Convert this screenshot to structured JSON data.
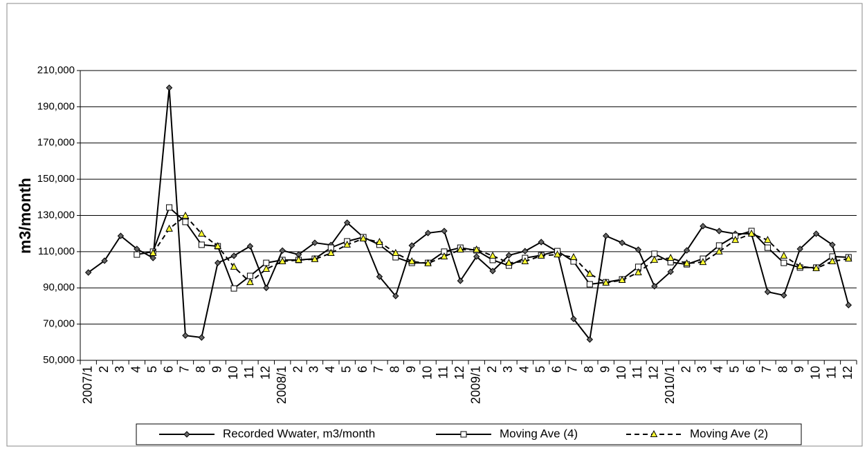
{
  "chart_data": {
    "type": "line",
    "y_label": "m3/month",
    "categories": [
      "2007/1",
      "2",
      "3",
      "4",
      "5",
      "6",
      "7",
      "8",
      "9",
      "10",
      "11",
      "12",
      "2008/1",
      "2",
      "3",
      "4",
      "5",
      "6",
      "7",
      "8",
      "9",
      "10",
      "11",
      "12",
      "2009/1",
      "2",
      "3",
      "4",
      "5",
      "6",
      "7",
      "8",
      "9",
      "10",
      "11",
      "12",
      "2010/1",
      "2",
      "3",
      "4",
      "5",
      "6",
      "7",
      "8",
      "9",
      "10",
      "11",
      "12"
    ],
    "ylim": [
      50000,
      210000
    ],
    "yticks": [
      {
        "value": 50000,
        "label": "50,000"
      },
      {
        "value": 70000,
        "label": "70,000"
      },
      {
        "value": 90000,
        "label": "90,000"
      },
      {
        "value": 110000,
        "label": "110,000"
      },
      {
        "value": 130000,
        "label": "130,000"
      },
      {
        "value": 150000,
        "label": "150,000"
      },
      {
        "value": 170000,
        "label": "170,000"
      },
      {
        "value": 190000,
        "label": "190,000"
      },
      {
        "value": 210000,
        "label": "210,000"
      }
    ],
    "grid": true,
    "legend": "bottom",
    "series": [
      {
        "name": "Recorded Wwater, m3/month",
        "color": "#000000",
        "marker": "diamond",
        "dash": "solid",
        "values": [
          98500,
          105000,
          118700,
          111500,
          106500,
          200500,
          63700,
          62600,
          103800,
          107700,
          113000,
          90000,
          110600,
          108400,
          114900,
          113700,
          126000,
          118000,
          96200,
          85500,
          113400,
          120300,
          121400,
          93900,
          107300,
          99300,
          108000,
          110300,
          115300,
          110000,
          72900,
          61500,
          118700,
          114900,
          111100,
          90900,
          98900,
          110700,
          124100,
          121400,
          119900,
          119900,
          87800,
          85900,
          111500,
          119900,
          113800,
          80500
        ]
      },
      {
        "name": "Moving Ave (4)",
        "color": "#000000",
        "marker": "square",
        "dash": "solid",
        "values": [
          null,
          null,
          null,
          108400,
          110000,
          134400,
          126400,
          113800,
          113000,
          89700,
          96600,
          103800,
          105400,
          105400,
          106100,
          112200,
          115700,
          118000,
          113800,
          106900,
          103800,
          103800,
          110000,
          112200,
          110700,
          105400,
          102300,
          106500,
          108000,
          110300,
          104600,
          92000,
          93100,
          94700,
          101600,
          108800,
          104200,
          103000,
          106100,
          113400,
          118700,
          121400,
          112200,
          103800,
          101200,
          101200,
          107300,
          106900
        ]
      },
      {
        "name": "Moving Ave (2)",
        "color": "#000000",
        "marker": "triangle",
        "dash": "dashed",
        "values": [
          null,
          null,
          null,
          null,
          109200,
          122600,
          129800,
          119900,
          113000,
          101600,
          93100,
          100400,
          104600,
          105400,
          105800,
          109200,
          113800,
          117200,
          115300,
          109200,
          104600,
          103500,
          107300,
          111100,
          111100,
          107700,
          103800,
          104600,
          107700,
          108400,
          106900,
          97700,
          92800,
          94300,
          98500,
          105400,
          106500,
          103500,
          104200,
          110000,
          116400,
          119900,
          116400,
          107700,
          101900,
          100800,
          104600,
          106100
        ]
      }
    ]
  }
}
